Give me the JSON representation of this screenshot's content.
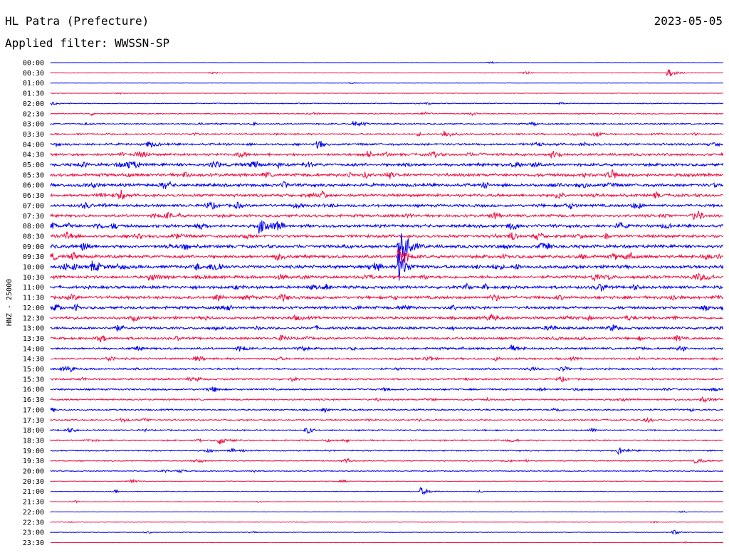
{
  "header": {
    "station": "HL Patra (Prefecture)",
    "date": "2023-05-05",
    "filter": "Applied filter: WWSSN-SP"
  },
  "chart_data": {
    "type": "line",
    "ylabel": "HNZ - 25000",
    "colors": {
      "even_row": "#0000ee",
      "odd_row": "#ee1144"
    },
    "rows": [
      "00:00",
      "00:30",
      "01:00",
      "01:30",
      "02:00",
      "02:30",
      "03:00",
      "03:30",
      "04:00",
      "04:30",
      "05:00",
      "05:30",
      "06:00",
      "06:30",
      "07:00",
      "07:30",
      "08:00",
      "08:30",
      "09:00",
      "09:30",
      "10:00",
      "10:30",
      "11:00",
      "11:30",
      "12:00",
      "12:30",
      "13:00",
      "13:30",
      "14:00",
      "14:30",
      "15:00",
      "15:30",
      "16:00",
      "16:30",
      "17:00",
      "17:30",
      "18:00",
      "18:30",
      "19:00",
      "19:30",
      "20:00",
      "20:30",
      "21:00",
      "21:30",
      "22:00",
      "22:30",
      "23:00",
      "23:30"
    ],
    "noise_level": [
      0.2,
      0.3,
      0.2,
      0.2,
      0.5,
      0.6,
      0.8,
      0.9,
      1.2,
      1.4,
      1.6,
      1.7,
      1.7,
      1.6,
      1.5,
      1.5,
      1.6,
      1.6,
      1.7,
      1.7,
      1.8,
      1.6,
      1.6,
      1.6,
      1.5,
      1.5,
      1.4,
      1.3,
      1.2,
      1.1,
      1.0,
      1.0,
      1.0,
      0.9,
      0.9,
      0.9,
      0.8,
      0.8,
      0.7,
      0.6,
      0.5,
      0.4,
      0.4,
      0.3,
      0.2,
      0.3,
      0.3,
      0.2
    ],
    "events": [
      {
        "row": 18,
        "minute": 15.5,
        "amplitude": 48
      },
      {
        "row": 19,
        "minute": 15.5,
        "amplitude": 20
      },
      {
        "row": 20,
        "minute": 15.5,
        "amplitude": 22
      },
      {
        "row": 16,
        "minute": 9.3,
        "amplitude": 10
      },
      {
        "row": 1,
        "minute": 27.5,
        "amplitude": 7
      },
      {
        "row": 6,
        "minute": 13.5,
        "amplitude": 5
      },
      {
        "row": 7,
        "minute": 17.5,
        "amplitude": 6
      },
      {
        "row": 20,
        "minute": 1.8,
        "amplitude": 8
      },
      {
        "row": 21,
        "minute": 4.4,
        "amplitude": 6
      },
      {
        "row": 28,
        "minute": 20.5,
        "amplitude": 5
      },
      {
        "row": 33,
        "minute": 29.0,
        "amplitude": 5
      },
      {
        "row": 42,
        "minute": 16.5,
        "amplitude": 6
      },
      {
        "row": 37,
        "minute": 7.5,
        "amplitude": 6
      },
      {
        "row": 38,
        "minute": 25.3,
        "amplitude": 5
      },
      {
        "row": 39,
        "minute": 28.7,
        "amplitude": 5
      },
      {
        "row": 46,
        "minute": 27.7,
        "amplitude": 4
      },
      {
        "row": 8,
        "minute": 4.3,
        "amplitude": 5
      },
      {
        "row": 9,
        "minute": 22.3,
        "amplitude": 6
      }
    ]
  }
}
